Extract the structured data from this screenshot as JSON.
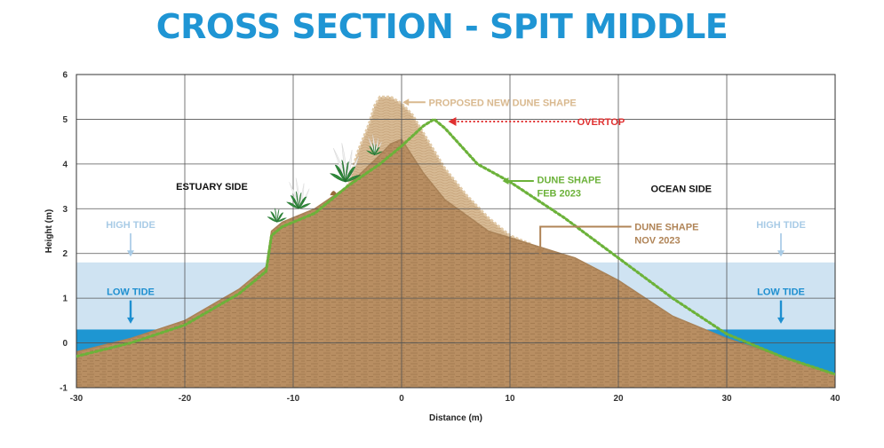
{
  "title": "CROSS SECTION - SPIT MIDDLE",
  "colors": {
    "title": "#1f95d4",
    "high_tide_water": "#cfe3f2",
    "low_tide_water": "#1e96d2",
    "sand": "#b88e62",
    "proposed_dune": "#d7ba94",
    "feb_line": "#6cb23a",
    "overtop": "#e03030",
    "high_tide_label": "#a8cbe6",
    "low_tide_label": "#1e8fd0",
    "nov_label": "#b08457",
    "grid": "#555555"
  },
  "chart_data": {
    "type": "area",
    "xlabel": "Distance (m)",
    "ylabel": "Height (m)",
    "xlim": [
      -30,
      40
    ],
    "ylim": [
      -1,
      6
    ],
    "xticks": [
      -30,
      -20,
      -10,
      0,
      10,
      20,
      30,
      40
    ],
    "yticks": [
      -1,
      0,
      1,
      2,
      3,
      4,
      5,
      6
    ],
    "grid": true,
    "high_tide_level": 1.8,
    "low_tide_level": 0.3,
    "series": [
      {
        "name": "DUNE SHAPE NOV 2023",
        "x": [
          -30,
          -25,
          -20,
          -15,
          -12.5,
          -12,
          -11,
          -8,
          -5,
          -2,
          -1,
          0,
          2,
          4,
          8,
          12,
          16,
          20,
          25,
          30,
          35,
          40
        ],
        "y": [
          -0.2,
          0.1,
          0.5,
          1.2,
          1.7,
          2.5,
          2.7,
          3.0,
          3.5,
          4.2,
          4.45,
          4.55,
          3.8,
          3.2,
          2.5,
          2.2,
          1.9,
          1.4,
          0.6,
          0.1,
          -0.3,
          -0.7
        ]
      },
      {
        "name": "DUNE SHAPE FEB 2023",
        "x": [
          -30,
          -25,
          -20,
          -15,
          -12.5,
          -12,
          -11,
          -8,
          -5,
          -2,
          0,
          2,
          3,
          4,
          7,
          10,
          15,
          20,
          25,
          30,
          35,
          40
        ],
        "y": [
          -0.3,
          0.0,
          0.4,
          1.1,
          1.6,
          2.4,
          2.6,
          2.9,
          3.5,
          4.0,
          4.4,
          4.85,
          5.0,
          4.8,
          4.0,
          3.6,
          2.8,
          1.9,
          1.0,
          0.2,
          -0.3,
          -0.7
        ]
      },
      {
        "name": "PROPOSED NEW DUNE SHAPE",
        "x": [
          -5,
          -4,
          -3,
          -2.5,
          -2,
          -1,
          0,
          1,
          2,
          4,
          6,
          8,
          10,
          12
        ],
        "y": [
          3.5,
          4.3,
          4.9,
          5.3,
          5.5,
          5.5,
          5.35,
          5.1,
          4.7,
          3.9,
          3.3,
          2.8,
          2.4,
          2.2
        ]
      }
    ],
    "annotations": [
      {
        "text": "PROPOSED NEW DUNE SHAPE",
        "x": 2.5,
        "y": 5.38
      },
      {
        "text": "OVERTOP",
        "x": 16.2,
        "y": 4.95
      },
      {
        "text": "DUNE SHAPE",
        "x": 12.5,
        "y": 3.65
      },
      {
        "text": "FEB 2023",
        "x": 12.5,
        "y": 3.35
      },
      {
        "text": "DUNE SHAPE",
        "x": 21.5,
        "y": 2.6
      },
      {
        "text": "NOV 2023",
        "x": 21.5,
        "y": 2.3
      },
      {
        "text": "ESTUARY SIDE",
        "x": -17.5,
        "y": 3.5
      },
      {
        "text": "OCEAN SIDE",
        "x": 25.8,
        "y": 3.45
      },
      {
        "text": "HIGH TIDE",
        "x": -25,
        "y": 2.65
      },
      {
        "text": "LOW TIDE",
        "x": -25,
        "y": 1.15
      },
      {
        "text": "HIGH TIDE",
        "x": 35,
        "y": 2.65
      },
      {
        "text": "LOW TIDE",
        "x": 35,
        "y": 1.15
      }
    ]
  }
}
